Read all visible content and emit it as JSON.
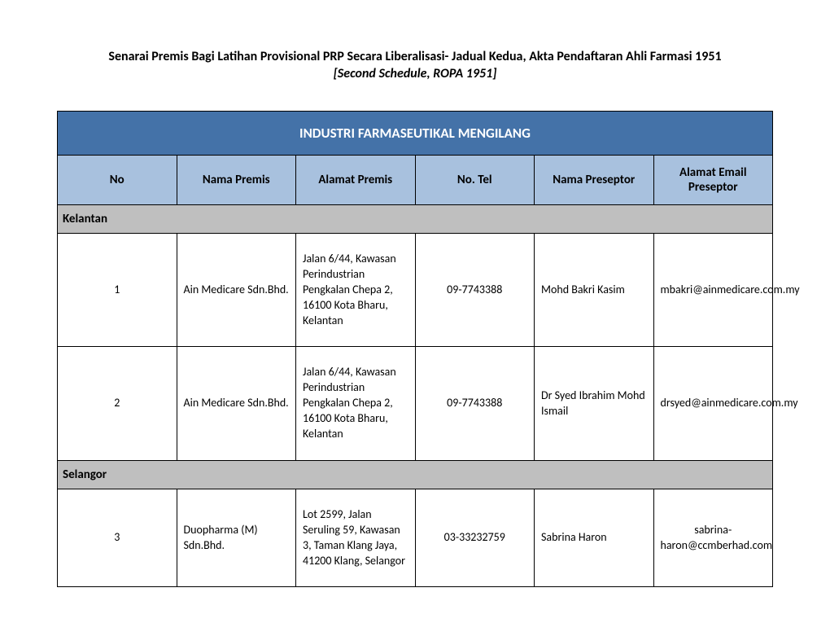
{
  "title": "Senarai Premis Bagi Latihan Provisional PRP Secara Liberalisasi- Jadual Kedua, Akta Pendaftaran Ahli Farmasi 1951",
  "subtitle": "[Second Schedule, ROPA 1951]",
  "banner": "INDUSTRI FARMASEUTIKAL MENGILANG",
  "columns": {
    "no": "No",
    "nama_premis": "Nama Premis",
    "alamat_premis": "Alamat Premis",
    "no_tel": "No. Tel",
    "nama_preseptor": "Nama Preseptor",
    "alamat_email": "Alamat Email Preseptor"
  },
  "col_widths_pct": [
    5,
    19,
    28,
    12,
    14,
    22
  ],
  "colors": {
    "banner_bg": "#4472a8",
    "banner_text": "#ffffff",
    "header_bg": "#a8c1de",
    "section_bg": "#bfbfbf",
    "border": "#000000",
    "page_bg": "#ffffff",
    "text": "#000000"
  },
  "typography": {
    "title_fontsize_pt": 12,
    "banner_fontsize_pt": 13,
    "header_fontsize_pt": 11,
    "body_fontsize_pt": 10.5,
    "font_family": "Calibri"
  },
  "sections": [
    {
      "label": "Kelantan",
      "rows": [
        {
          "no": "1",
          "nama_premis": "Ain Medicare Sdn.Bhd.",
          "alamat_premis": "Jalan 6/44, Kawasan Perindustrian Pengkalan Chepa 2, 16100 Kota Bharu, Kelantan",
          "no_tel": "09-7743388",
          "nama_preseptor": "Mohd Bakri Kasim",
          "alamat_email": "mbakri@ainmedicare.com.my"
        },
        {
          "no": "2",
          "nama_premis": "Ain Medicare Sdn.Bhd.",
          "alamat_premis": "Jalan 6/44, Kawasan Perindustrian Pengkalan Chepa 2, 16100 Kota Bharu, Kelantan",
          "no_tel": "09-7743388",
          "nama_preseptor": "Dr Syed Ibrahim Mohd Ismail",
          "alamat_email": "drsyed@ainmedicare.com.my"
        }
      ]
    },
    {
      "label": "Selangor",
      "rows": [
        {
          "no": "3",
          "nama_premis": "Duopharma (M) Sdn.Bhd.",
          "alamat_premis": "Lot 2599, Jalan Seruling 59, Kawasan 3, Taman Klang Jaya, 41200 Klang, Selangor",
          "no_tel": "03-33232759",
          "nama_preseptor": "Sabrina Haron",
          "alamat_email": "sabrina-haron@ccmberhad.com"
        }
      ]
    }
  ]
}
